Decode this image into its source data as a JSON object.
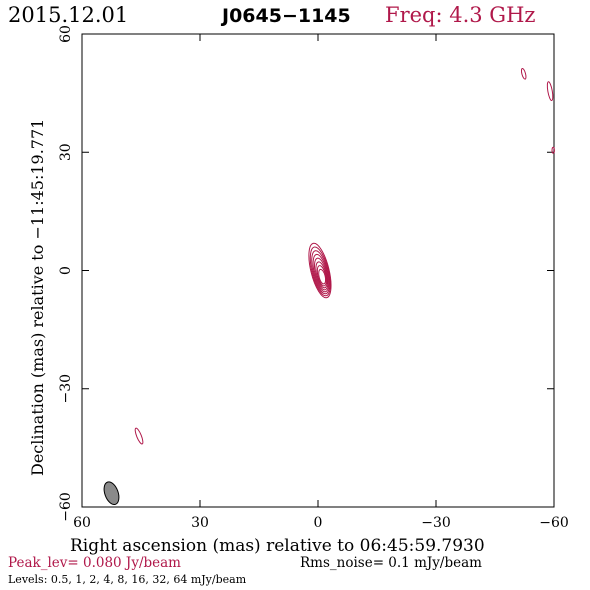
{
  "header": {
    "date": "2015.12.01",
    "source": "J0645−1145",
    "freq": "Freq: 4.3 GHz"
  },
  "footer": {
    "peak": "Peak_lev=  0.080 Jy/beam",
    "rms": "Rms_noise=  0.1 mJy/beam",
    "levels": "Levels: 0.5,   1,   2,   4,   8,  16,  32,  64 mJy/beam"
  },
  "colors": {
    "contour": "#b0184a",
    "frame": "#000000",
    "beam_fill": "#8a8a8a"
  },
  "chart_data": {
    "type": "contour",
    "title": "J0645−1145",
    "xlabel": "Right ascension (mas) relative to 06:45:59.7930",
    "ylabel": "Declination (mas) relative to −11:45:19.771",
    "xlim": [
      60,
      -60
    ],
    "ylim": [
      -60,
      60
    ],
    "xticks": [
      60,
      30,
      0,
      -30,
      -60
    ],
    "yticks": [
      60,
      30,
      0,
      -30,
      -60
    ],
    "xtick_labels": [
      "60",
      "30",
      "0",
      "−30",
      "−60"
    ],
    "ytick_labels": [
      "60",
      "30",
      "0",
      "−30",
      "−60"
    ],
    "levels_mJy": [
      0.5,
      1,
      2,
      4,
      8,
      16,
      32,
      64
    ],
    "peak_Jy_per_beam": 0.08,
    "rms_mJy_per_beam": 0.1,
    "core": {
      "x": -0.5,
      "y": 0.0,
      "levels": 8
    },
    "features": [
      {
        "name": "lower-left blob",
        "x": 45.5,
        "y": -42.0
      },
      {
        "name": "upper-right blob",
        "x": -52.3,
        "y": 49.9
      },
      {
        "name": "edge blob 1",
        "x": -59.0,
        "y": 45.5
      },
      {
        "name": "edge blob 2",
        "x": -59.8,
        "y": 30.5
      }
    ],
    "beam": {
      "x": 52.5,
      "y": -56.5,
      "major_mas": 6.0,
      "minor_mas": 2.6,
      "pa_deg": 20
    }
  }
}
